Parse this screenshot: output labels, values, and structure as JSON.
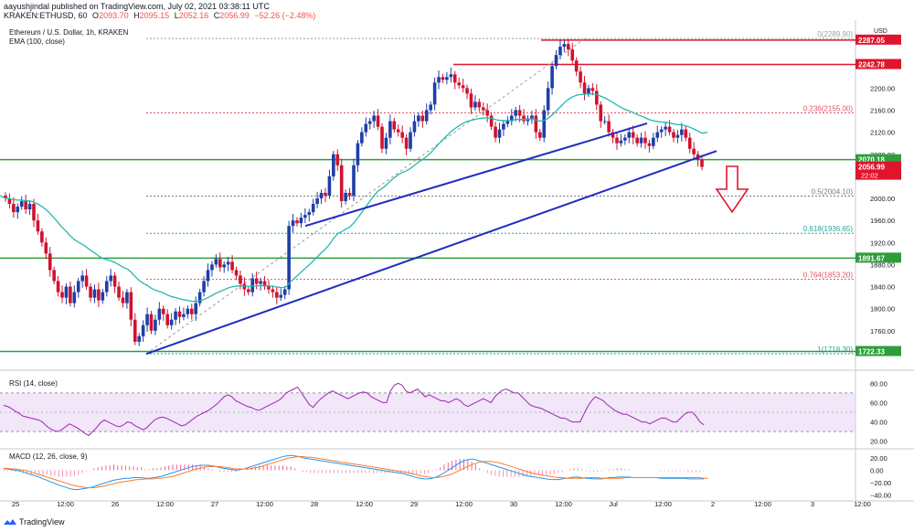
{
  "header": {
    "publisher": "aayushjindal published on TradingView.com, July 02, 2021 03:38:11 UTC",
    "symbol": "KRAKEN:ETHUSD, 60",
    "o_label": "O",
    "o": "2093.70",
    "h_label": "H",
    "h": "2095.15",
    "l_label": "L",
    "l": "2052.16",
    "c_label": "C",
    "c": "2056.99",
    "change": "−52.26 (−2.48%)"
  },
  "legend": {
    "title": "Ethereum / U.S. Dollar, 1h, KRAKEN",
    "ema": "EMA (100, close)",
    "rsi": "RSI (14, close)",
    "macd": "MACD (12, 26, close, 9)"
  },
  "watermark": "TradingView",
  "colors": {
    "up": "#1e3ea8",
    "down": "#d0122d",
    "ema": "#26b8b0",
    "trend": "#1f2dbf",
    "level_red": "#e0152d",
    "level_green": "#2e9e3c",
    "rsi_band": "#e9d5f5",
    "rsi_line": "#9c27b0",
    "macd_line": "#2196f3",
    "signal_line": "#ff7a29"
  },
  "chart_data": {
    "type": "candlestick",
    "ylim": [
      1700,
      2310
    ],
    "price_ticks": [
      "2200.00",
      "2160.00",
      "2120.00",
      "2080.00",
      "2040.00",
      "2000.00",
      "1960.00",
      "1920.00",
      "1880.00",
      "1840.00",
      "1800.00",
      "1760.00"
    ],
    "axis_unit": "USD",
    "time_ticks": [
      "25",
      "12:00",
      "26",
      "12:00",
      "27",
      "12:00",
      "28",
      "12:00",
      "29",
      "12:00",
      "30",
      "12:00",
      "Jul",
      "12:00",
      "2",
      "12:00",
      "3",
      "12:00"
    ],
    "price_labels": [
      {
        "value": 2287.05,
        "text": "2287.05",
        "color": "red"
      },
      {
        "value": 2242.78,
        "text": "2242.78",
        "color": "red"
      },
      {
        "value": 2070.18,
        "text": "2070.18",
        "color": "green"
      },
      {
        "value": 2056.99,
        "text": "2056.99",
        "color": "red",
        "sub": "22:02"
      },
      {
        "value": 1891.67,
        "text": "1891.67",
        "color": "green"
      },
      {
        "value": 1722.33,
        "text": "1722.33",
        "color": "green"
      }
    ],
    "fib_levels": [
      {
        "value": 2289.9,
        "text": "0(2289.90)",
        "color": "#9e9e9e"
      },
      {
        "value": 2155.0,
        "text": "0.236(2155.00)",
        "color": "#e05260"
      },
      {
        "value": 2004.1,
        "text": "0.5(2004.10)",
        "color": "#787b86"
      },
      {
        "value": 1936.65,
        "text": "0.618(1936.65)",
        "color": "#26a69a"
      },
      {
        "value": 1853.2,
        "text": "0.764(1853.20)",
        "color": "#e05260"
      },
      {
        "value": 1718.3,
        "text": "1(1718.30)",
        "color": "#26a69a"
      }
    ],
    "horizontal_levels": [
      {
        "value": 2287.05,
        "color": "red"
      },
      {
        "value": 2242.78,
        "color": "red"
      },
      {
        "value": 2070.18,
        "color": "green"
      },
      {
        "value": 1891.67,
        "color": "green"
      },
      {
        "value": 1722.33,
        "color": "green"
      }
    ],
    "rsi": {
      "ticks": [
        "80.00",
        "60.00",
        "40.00",
        "20.00"
      ],
      "band": [
        30,
        70
      ],
      "values": [
        57,
        56,
        54,
        51,
        49,
        46,
        45,
        44,
        43,
        42,
        40,
        36,
        33,
        31,
        30,
        32,
        35,
        38,
        36,
        34,
        31,
        28,
        26,
        30,
        34,
        39,
        42,
        40,
        38,
        36,
        35,
        37,
        40,
        39,
        36,
        34,
        32,
        34,
        38,
        42,
        44,
        45,
        44,
        42,
        40,
        38,
        36,
        37,
        40,
        43,
        46,
        48,
        50,
        52,
        55,
        58,
        62,
        66,
        68,
        66,
        62,
        60,
        58,
        56,
        55,
        53,
        52,
        54,
        56,
        58,
        60,
        62,
        65,
        70,
        72,
        74,
        76,
        70,
        64,
        58,
        55,
        60,
        64,
        67,
        70,
        72,
        70,
        68,
        66,
        64,
        66,
        68,
        70,
        71,
        70,
        66,
        64,
        62,
        60,
        60,
        72,
        78,
        80,
        78,
        72,
        70,
        72,
        74,
        70,
        66,
        68,
        66,
        64,
        62,
        62,
        60,
        62,
        64,
        62,
        58,
        56,
        58,
        60,
        62,
        64,
        62,
        60,
        66,
        70,
        73,
        74,
        72,
        70,
        70,
        66,
        62,
        58,
        56,
        55,
        54,
        52,
        50,
        48,
        46,
        44,
        44,
        42,
        40,
        40,
        40,
        48,
        56,
        62,
        66,
        64,
        62,
        58,
        55,
        52,
        50,
        48,
        48,
        46,
        44,
        42,
        40,
        40,
        38,
        40,
        42,
        44,
        44,
        42,
        40,
        40,
        44,
        48,
        50,
        50,
        46,
        40,
        37
      ]
    },
    "macd": {
      "ticks": [
        "20.00",
        "0.00",
        "−20.00",
        "−40.00"
      ],
      "ylim": [
        -45,
        30
      ],
      "macd_line": [
        2,
        2,
        1,
        0,
        -1,
        -3,
        -5,
        -7,
        -9,
        -11,
        -14,
        -16,
        -19,
        -21,
        -24,
        -26,
        -28,
        -30,
        -31,
        -31,
        -30,
        -29,
        -28,
        -26,
        -24,
        -22,
        -20,
        -18,
        -16,
        -15,
        -14,
        -13,
        -13,
        -12,
        -12,
        -12,
        -13,
        -13,
        -12,
        -11,
        -10,
        -8,
        -6,
        -4,
        -2,
        0,
        2,
        4,
        6,
        7,
        8,
        8,
        8,
        7,
        6,
        4,
        3,
        2,
        1,
        0,
        1,
        2,
        4,
        6,
        8,
        10,
        12,
        14,
        16,
        18,
        20,
        22,
        23,
        24,
        23,
        22,
        20,
        19,
        18,
        17,
        16,
        15,
        14,
        13,
        12,
        11,
        10,
        9,
        8,
        7,
        6,
        5,
        4,
        3,
        2,
        1,
        0,
        -1,
        -2,
        -3,
        -4,
        -5,
        -6,
        -8,
        -10,
        -12,
        -13,
        -14,
        -14,
        -13,
        -11,
        -8,
        -4,
        0,
        4,
        8,
        12,
        15,
        17,
        18,
        17,
        15,
        13,
        11,
        9,
        7,
        5,
        3,
        1,
        -1,
        -3,
        -5,
        -7,
        -9,
        -10,
        -11,
        -12,
        -13,
        -14,
        -15,
        -15,
        -15,
        -14,
        -13,
        -12,
        -11,
        -11,
        -12,
        -13,
        -13,
        -14,
        -14,
        -14,
        -13,
        -12,
        -12,
        -11,
        -11,
        -11,
        -11,
        -12,
        -12,
        -12,
        -12,
        -12,
        -12,
        -12,
        -13,
        -13,
        -13,
        -13,
        -13,
        -13,
        -13,
        -14,
        -14,
        -14,
        -14,
        -14
      ],
      "signal_line": [
        3,
        3,
        2,
        2,
        1,
        0,
        -1,
        -3,
        -5,
        -7,
        -9,
        -11,
        -13,
        -15,
        -17,
        -19,
        -21,
        -23,
        -25,
        -26,
        -27,
        -28,
        -28,
        -28,
        -27,
        -26,
        -25,
        -23,
        -22,
        -20,
        -19,
        -18,
        -17,
        -16,
        -15,
        -15,
        -14,
        -14,
        -14,
        -13,
        -13,
        -12,
        -11,
        -10,
        -8,
        -6,
        -4,
        -2,
        0,
        2,
        3,
        5,
        6,
        6,
        6,
        6,
        5,
        4,
        3,
        2,
        2,
        2,
        2,
        3,
        4,
        5,
        7,
        9,
        11,
        13,
        15,
        17,
        19,
        20,
        21,
        22,
        22,
        21,
        21,
        20,
        19,
        18,
        17,
        16,
        15,
        14,
        13,
        12,
        11,
        10,
        9,
        8,
        7,
        6,
        5,
        4,
        3,
        2,
        1,
        0,
        -1,
        -2,
        -3,
        -4,
        -6,
        -7,
        -9,
        -10,
        -11,
        -12,
        -12,
        -11,
        -10,
        -8,
        -6,
        -3,
        0,
        3,
        6,
        9,
        11,
        13,
        14,
        14,
        14,
        13,
        12,
        10,
        8,
        6,
        4,
        2,
        0,
        -2,
        -4,
        -6,
        -7,
        -8,
        -9,
        -10,
        -11,
        -12,
        -12,
        -13,
        -13,
        -13,
        -13,
        -13,
        -12,
        -12,
        -12,
        -12,
        -13,
        -13,
        -13,
        -13,
        -13,
        -13,
        -12,
        -12,
        -12,
        -12,
        -12,
        -12,
        -12,
        -12,
        -12,
        -12,
        -12,
        -12,
        -12,
        -12,
        -12,
        -12,
        -12,
        -12,
        -12,
        -12,
        -13,
        -13
      ]
    }
  }
}
